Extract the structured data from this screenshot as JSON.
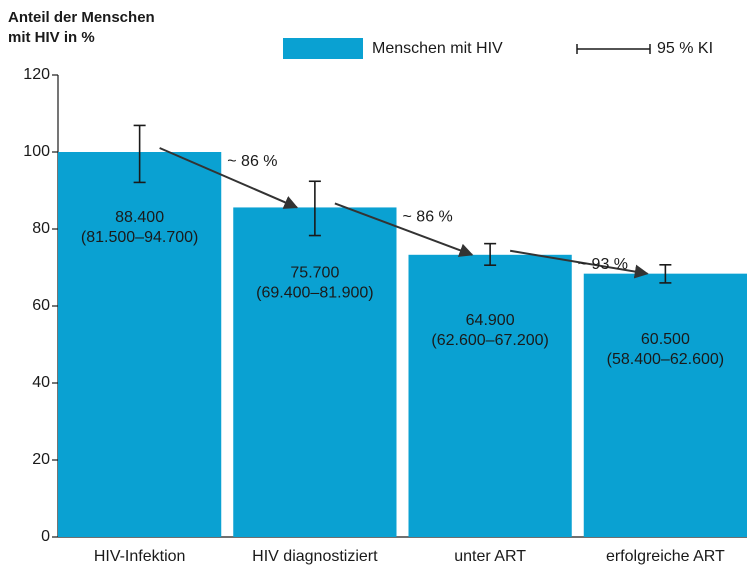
{
  "chart_data": {
    "type": "bar",
    "title_lines": [
      "Anteil der Menschen",
      "mit HIV in %"
    ],
    "categories": [
      "HIV-Infektion",
      "HIV diagnostiziert",
      "unter ART",
      "erfolgreiche ART"
    ],
    "series": [
      {
        "name": "Menschen mit HIV",
        "color": "#0aa1d2",
        "values": [
          100,
          85.6,
          73.3,
          68.4
        ]
      }
    ],
    "error_low": [
      92.1,
      78.3,
      70.6,
      66.0
    ],
    "error_high": [
      106.9,
      92.4,
      76.2,
      70.7
    ],
    "error_name": "95 % KI",
    "bar_labels": [
      [
        "88.400",
        "(81.500–94.700)"
      ],
      [
        "75.700",
        "(69.400–81.900)"
      ],
      [
        "64.900",
        "(62.600–67.200)"
      ],
      [
        "60.500",
        "(58.400–62.600)"
      ]
    ],
    "step_labels": [
      "~ 86 %",
      "~ 86 %",
      "~ 93 %"
    ],
    "ylim": [
      0,
      120
    ],
    "yticks": [
      0,
      20,
      40,
      60,
      80,
      100,
      120
    ]
  }
}
